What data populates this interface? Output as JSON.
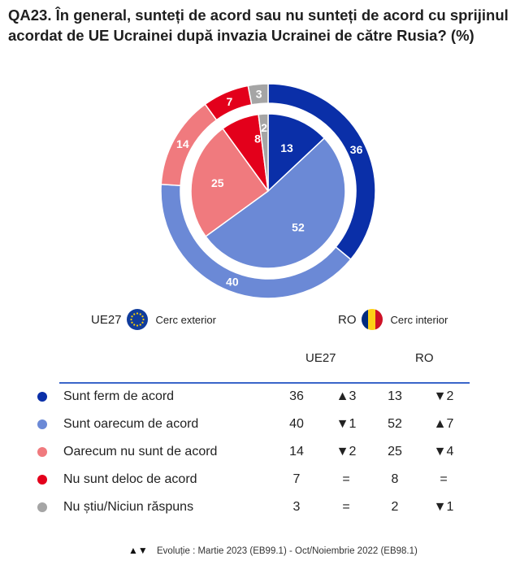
{
  "title": "QA23. În general, sunteți de acord sau nu sunteți de acord cu sprijinul acordat de UE Ucrainei după invazia Ucrainei de către Rusia? (%)",
  "legend": {
    "outer_code": "UE27",
    "outer_label": "Cerc exterior",
    "inner_code": "RO",
    "inner_label": "Cerc interior"
  },
  "table": {
    "col1": "UE27",
    "col2": "RO",
    "rows": [
      {
        "label": "Sunt ferm de acord",
        "ue": "36",
        "ue_evo": "▲3",
        "ro": "13",
        "ro_evo": "▼2",
        "color": "#0a2fa8"
      },
      {
        "label": "Sunt oarecum de acord",
        "ue": "40",
        "ue_evo": "▼1",
        "ro": "52",
        "ro_evo": "▲7",
        "color": "#6b89d6"
      },
      {
        "label": "Oarecum nu sunt de acord",
        "ue": "14",
        "ue_evo": "▼2",
        "ro": "25",
        "ro_evo": "▼4",
        "color": "#f07a7e"
      },
      {
        "label": "Nu sunt deloc de acord",
        "ue": "7",
        "ue_evo": "=",
        "ro": "8",
        "ro_evo": "=",
        "color": "#e3001b"
      },
      {
        "label": "Nu știu/Niciun răspuns",
        "ue": "3",
        "ue_evo": "=",
        "ro": "2",
        "ro_evo": "▼1",
        "color": "#a5a5a5"
      }
    ]
  },
  "footer": {
    "arrows": "▲▼",
    "text": "Evoluție : Martie 2023 (EB99.1) - Oct/Noiembrie 2022 (EB98.1)"
  },
  "chart_data": {
    "type": "pie",
    "categories": [
      "Sunt ferm de acord",
      "Sunt oarecum de acord",
      "Oarecum nu sunt de acord",
      "Nu sunt deloc de acord",
      "Nu știu/Niciun răspuns"
    ],
    "colors": [
      "#0a2fa8",
      "#6b89d6",
      "#f07a7e",
      "#e3001b",
      "#a5a5a5"
    ],
    "series": [
      {
        "name": "UE27",
        "values": [
          36,
          40,
          14,
          7,
          3
        ]
      },
      {
        "name": "RO",
        "values": [
          13,
          52,
          25,
          8,
          2
        ]
      }
    ]
  }
}
